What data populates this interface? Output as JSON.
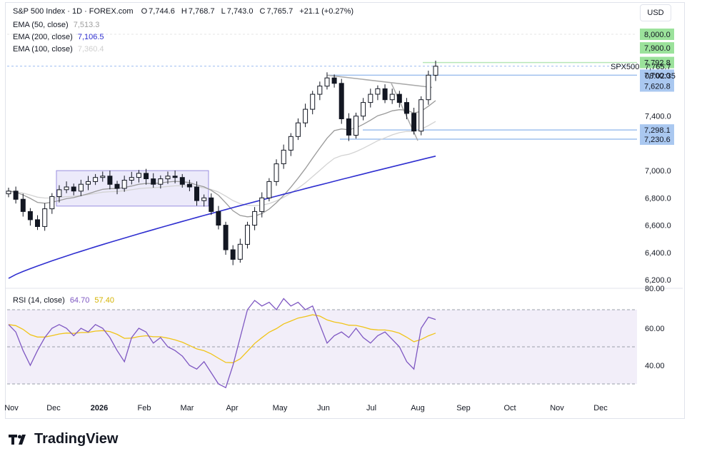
{
  "header": {
    "symbol": "S&P 500 Index · 1D · FOREX.com",
    "ohlc": [
      {
        "label": "O",
        "value": "7,744.6"
      },
      {
        "label": "H",
        "value": "7,768.7"
      },
      {
        "label": "L",
        "value": "7,743.0"
      },
      {
        "label": "C",
        "value": "7,765.7"
      }
    ],
    "change": "+21.1 (+0.27%)",
    "currency": "USD"
  },
  "indicators": [
    {
      "label": "EMA (50, close)",
      "value": "7,513.3",
      "color": "#9e9e9e"
    },
    {
      "label": "EMA (200, close)",
      "value": "7,106.5",
      "color": "#2f2fd0"
    },
    {
      "label": "EMA (100, close)",
      "value": "7,360.4",
      "color": "#cfcfcf"
    }
  ],
  "rsi_legend": {
    "label": "RSI (14, close)",
    "value": "64.70",
    "ma_value": "57.40",
    "color": "#7e57c2",
    "ma_color": "#e0c41f"
  },
  "price_axis": {
    "ticks": [
      "8,000.0",
      "7,900.0",
      "7,400.0",
      "7,000.0",
      "6,800.0",
      "6,600.0",
      "6,400.0",
      "6,200.0"
    ],
    "highlighted": [
      {
        "text": "8,000.0",
        "color": "#9be29b"
      },
      {
        "text": "7,900.0",
        "color": "#9be29b"
      },
      {
        "text": "7,792.8",
        "color": "#9be29b"
      },
      {
        "text": "7,700.0",
        "color": "#aac8f0"
      },
      {
        "text": "7,620.8",
        "color": "#aac8f0"
      },
      {
        "text": "7,298.1",
        "color": "#aac8f0"
      },
      {
        "text": "7,230.6",
        "color": "#aac8f0"
      }
    ],
    "symbol_tag": "SPX500",
    "last_price": "7,765.7",
    "countdown": "08:02:35"
  },
  "rsi_axis": {
    "ticks": [
      "80.00",
      "60.00",
      "40.00"
    ]
  },
  "time_axis": {
    "labels": [
      "Nov",
      "Dec",
      "2026",
      "Feb",
      "Mar",
      "Apr",
      "May",
      "Jun",
      "Jul",
      "Aug",
      "Sep",
      "Oct",
      "Nov",
      "Dec"
    ]
  },
  "brand": {
    "name": "TradingView"
  },
  "chart_data": {
    "type": "candlestick",
    "subtype": "ohlc price chart with EMA overlays and RSI subpanel",
    "y_range": [
      6200,
      8080
    ],
    "rsi_range": [
      25,
      80
    ],
    "rsi_levels": [
      70,
      50,
      30
    ],
    "series": [
      {
        "name": "S&P 500 Index",
        "close_approx": [
          6850,
          6790,
          6700,
          6640,
          6590,
          6720,
          6810,
          6860,
          6880,
          6850,
          6900,
          6920,
          6950,
          6960,
          6900,
          6870,
          6930,
          6950,
          6980,
          6940,
          6900,
          6940,
          6960,
          6950,
          6900,
          6880,
          6780,
          6800,
          6700,
          6600,
          6420,
          6350,
          6460,
          6600,
          6700,
          6800,
          6920,
          7050,
          7150,
          7250,
          7350,
          7450,
          7560,
          7620,
          7680,
          7640,
          7380,
          7260,
          7400,
          7500,
          7560,
          7600,
          7520,
          7560,
          7500,
          7420,
          7290,
          7520,
          7700,
          7765.7
        ]
      },
      {
        "name": "EMA (50, close)",
        "last": 7513.3
      },
      {
        "name": "EMA (100, close)",
        "last": 7360.4
      },
      {
        "name": "EMA (200, close)",
        "last": 7106.5
      },
      {
        "name": "RSI (14, close)",
        "values_approx": [
          62,
          58,
          48,
          40,
          48,
          55,
          60,
          62,
          60,
          56,
          60,
          58,
          62,
          60,
          55,
          48,
          42,
          55,
          60,
          58,
          52,
          55,
          50,
          48,
          45,
          40,
          38,
          42,
          36,
          30,
          28,
          40,
          55,
          70,
          75,
          72,
          74,
          70,
          76,
          72,
          74,
          70,
          72,
          62,
          52,
          56,
          58,
          55,
          60,
          55,
          52,
          56,
          58,
          54,
          50,
          42,
          38,
          60,
          66,
          64.7
        ]
      },
      {
        "name": "RSI MA",
        "last": 57.4
      }
    ],
    "annotations": [
      {
        "type": "range-box",
        "from_price": 6740,
        "to_price": 7000
      },
      {
        "type": "horizontal",
        "price": 7792.8
      },
      {
        "type": "horizontal",
        "price": 7700.0
      },
      {
        "type": "horizontal",
        "price": 7298.1
      },
      {
        "type": "horizontal",
        "price": 7230.6
      }
    ]
  }
}
